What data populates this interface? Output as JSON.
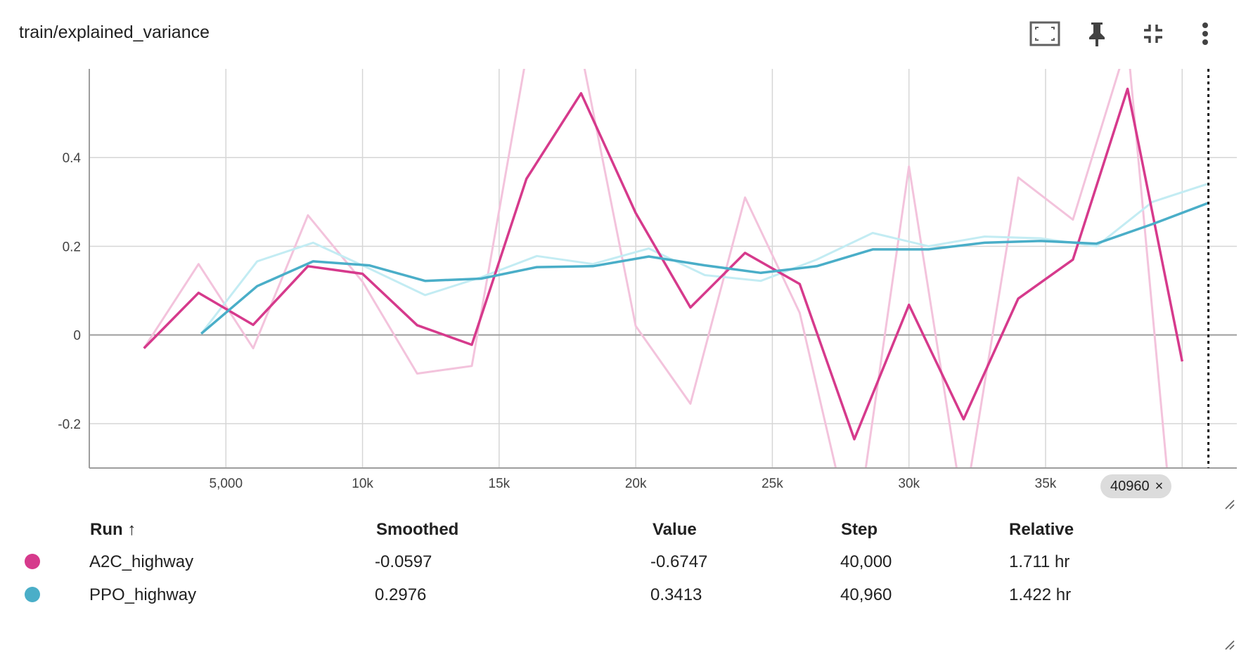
{
  "title": "train/explained_variance",
  "toolbar": {
    "icons": [
      "fit-screen-icon",
      "pin-icon",
      "collapse-icon",
      "more-vert-icon"
    ]
  },
  "chart_data": {
    "type": "line",
    "xlim": [
      0,
      42000
    ],
    "ylim": [
      -0.3,
      0.6
    ],
    "grid": true,
    "x_ticks": [
      5000,
      10000,
      15000,
      20000,
      25000,
      30000,
      35000
    ],
    "x_tick_labels": [
      "5,000",
      "10k",
      "15k",
      "20k",
      "25k",
      "30k",
      "35k"
    ],
    "y_ticks": [
      -0.2,
      0,
      0.2,
      0.4
    ],
    "y_tick_labels": [
      "-0.2",
      "0",
      "0.2",
      "0.4"
    ],
    "cursor_step": 40960,
    "cursor_label": "40960",
    "series": [
      {
        "name": "A2C_highway",
        "color": "#d63a8c",
        "raw_color": "#f3c3dc",
        "x": [
          2000,
          4000,
          6000,
          8000,
          10000,
          12000,
          14000,
          16000,
          18000,
          20000,
          22000,
          24000,
          26000,
          28000,
          30000,
          32000,
          34000,
          36000,
          38000,
          40000
        ],
        "raw": [
          -0.03,
          0.16,
          -0.03,
          0.27,
          0.12,
          -0.087,
          -0.07,
          0.63,
          0.64,
          0.02,
          -0.155,
          0.31,
          0.05,
          -0.48,
          0.38,
          -0.4,
          0.355,
          0.26,
          0.66,
          -0.6747
        ],
        "smoothed": [
          -0.03,
          0.095,
          0.023,
          0.155,
          0.138,
          0.022,
          -0.022,
          0.352,
          0.545,
          0.275,
          0.062,
          0.185,
          0.115,
          -0.235,
          0.068,
          -0.19,
          0.082,
          0.17,
          0.555,
          -0.0597
        ]
      },
      {
        "name": "PPO_highway",
        "color": "#4aaec8",
        "raw_color": "#c3ecf3",
        "x": [
          4096,
          6144,
          8192,
          10240,
          12288,
          14336,
          16384,
          18432,
          20480,
          22528,
          24576,
          26624,
          28672,
          30720,
          32768,
          34816,
          36864,
          38912,
          40960
        ],
        "raw": [
          0.003,
          0.166,
          0.208,
          0.15,
          0.09,
          0.13,
          0.178,
          0.16,
          0.195,
          0.135,
          0.122,
          0.17,
          0.23,
          0.2,
          0.222,
          0.218,
          0.2,
          0.3,
          0.3413
        ],
        "smoothed": [
          0.003,
          0.11,
          0.166,
          0.157,
          0.122,
          0.127,
          0.153,
          0.155,
          0.177,
          0.157,
          0.14,
          0.155,
          0.193,
          0.193,
          0.208,
          0.212,
          0.206,
          0.25,
          0.2976
        ]
      }
    ]
  },
  "table": {
    "headers": {
      "run": "Run ↑",
      "smoothed": "Smoothed",
      "value": "Value",
      "step": "Step",
      "relative": "Relative"
    },
    "rows": [
      {
        "run": "A2C_highway",
        "color": "#d63a8c",
        "smoothed": "-0.0597",
        "value": "-0.6747",
        "step": "40,000",
        "relative": "1.711 hr"
      },
      {
        "run": "PPO_highway",
        "color": "#4aaec8",
        "smoothed": "0.2976",
        "value": "0.3413",
        "step": "40,960",
        "relative": "1.422 hr"
      }
    ]
  }
}
